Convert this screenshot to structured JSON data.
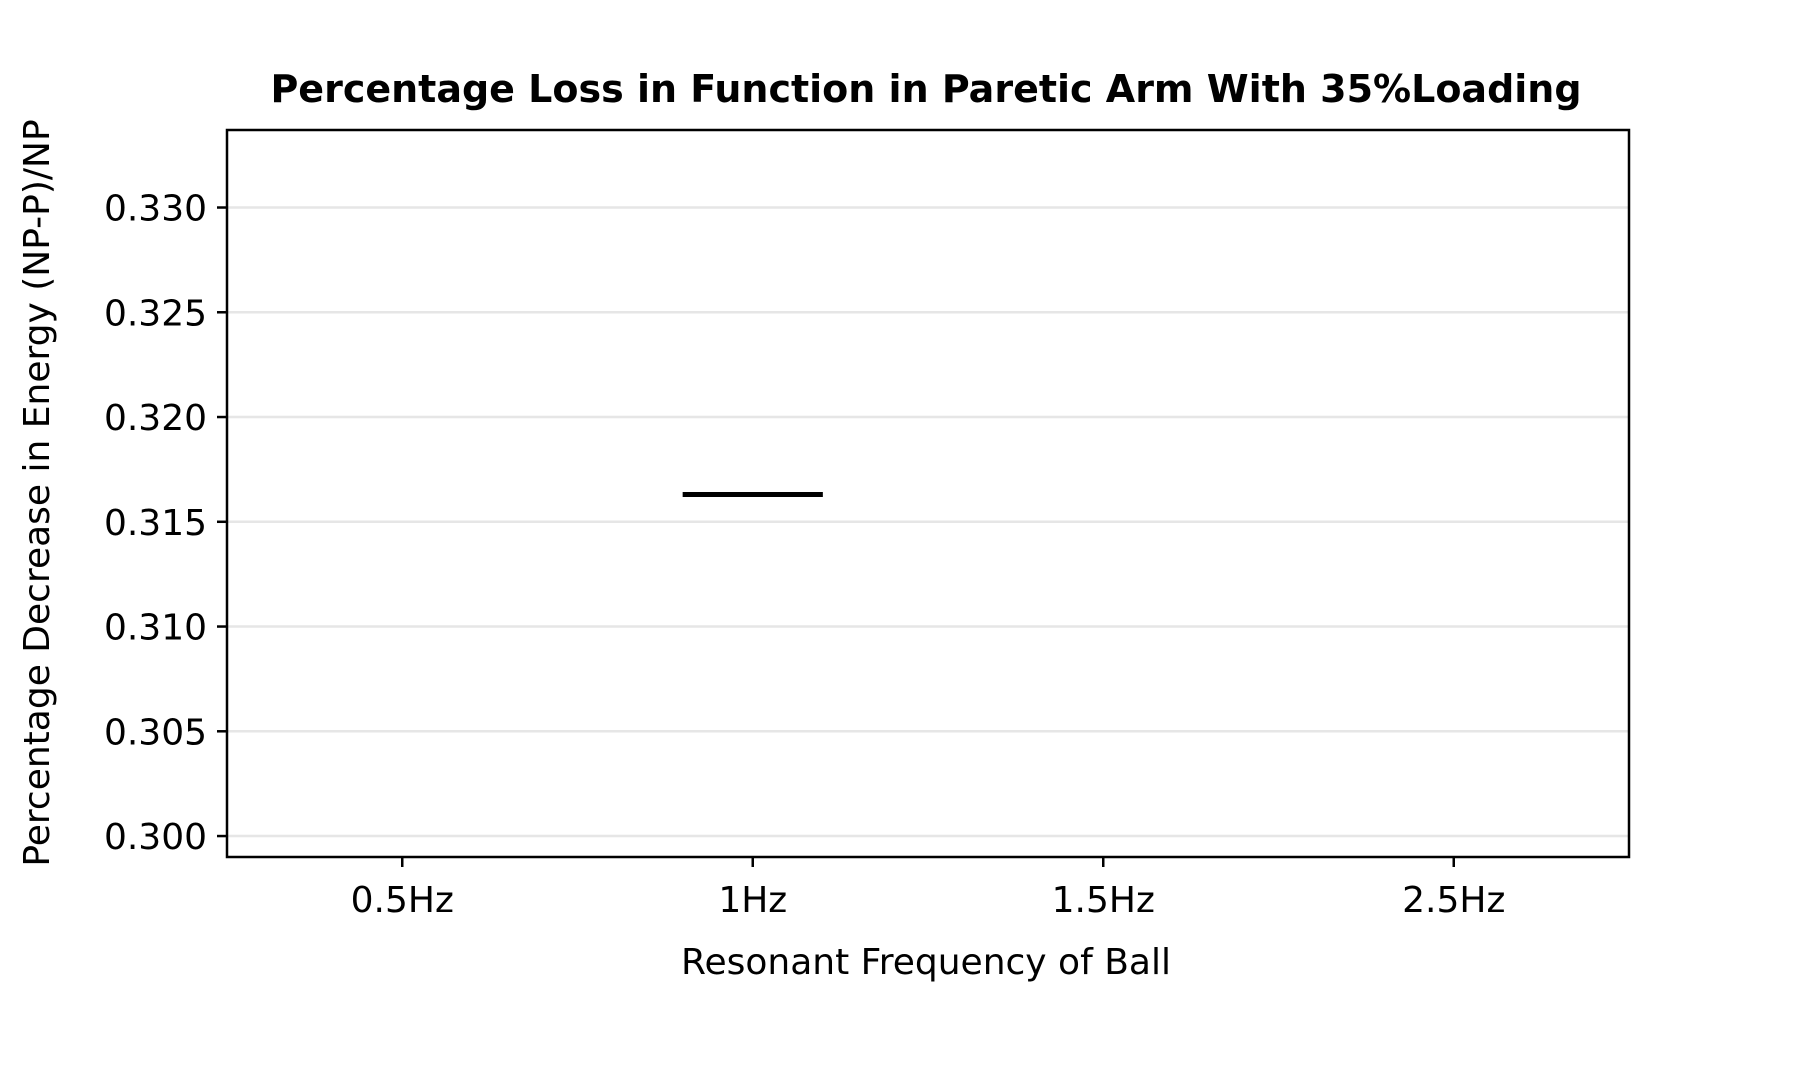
{
  "chart_data": {
    "type": "bar",
    "title": "Percentage Loss in Function in Paretic Arm With 35%Loading",
    "xlabel": "Resonant Frequency of Ball",
    "ylabel": "Percentage Decrease in Energy (NP-P)/NP",
    "categories": [
      "0.5Hz",
      "1Hz",
      "1.5Hz",
      "2.5Hz"
    ],
    "series": [
      {
        "values": [
          null,
          0.3163,
          null,
          null
        ]
      }
    ],
    "ylim": [
      0.299,
      0.3337
    ],
    "yticks": [
      "0.300",
      "0.305",
      "0.310",
      "0.315",
      "0.320",
      "0.325",
      "0.330"
    ],
    "ytick_values": [
      0.3,
      0.305,
      0.31,
      0.315,
      0.32,
      0.325,
      0.33
    ],
    "grid": "horizontal",
    "legend": "none",
    "colors": {
      "axis": "#000000",
      "grid": "#e6e6e6",
      "mark": "#000000"
    }
  }
}
